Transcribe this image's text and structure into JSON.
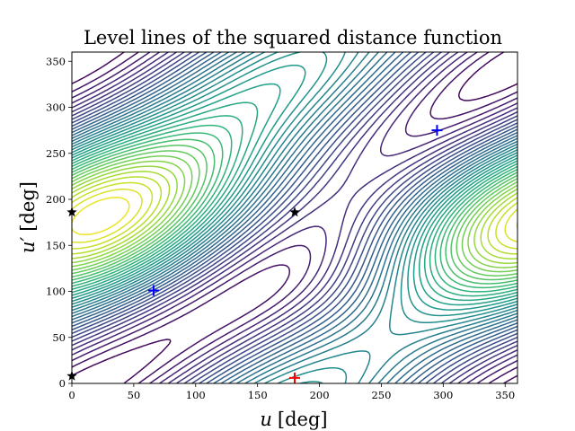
{
  "chart_data": {
    "type": "contour",
    "title": "Level lines of the squared distance function",
    "xlabel_var": "u",
    "xlabel_unit": "[deg]",
    "ylabel_var": "u′",
    "ylabel_unit": "[deg]",
    "xlim": [
      0,
      360
    ],
    "ylim": [
      0,
      360
    ],
    "xticks": [
      0,
      50,
      100,
      150,
      200,
      250,
      300,
      350
    ],
    "yticks": [
      0,
      50,
      100,
      150,
      200,
      250,
      300,
      350
    ],
    "colormap": "viridis",
    "grid": false,
    "markers": [
      {
        "kind": "minimum",
        "symbol": "+",
        "color": "#0000ff",
        "x": 66,
        "y": 101
      },
      {
        "kind": "minimum",
        "symbol": "+",
        "color": "#0000ff",
        "x": 295,
        "y": 275
      },
      {
        "kind": "maximum",
        "symbol": "+",
        "color": "#ff0000",
        "x": 180,
        "y": 6
      },
      {
        "kind": "saddle",
        "symbol": "★",
        "color": "#000000",
        "x": 180,
        "y": 186
      },
      {
        "kind": "saddle",
        "symbol": "★",
        "color": "#000000",
        "x": 0,
        "y": 186
      },
      {
        "kind": "saddle",
        "symbol": "★",
        "color": "#000000",
        "x": 0,
        "y": 8
      }
    ]
  }
}
